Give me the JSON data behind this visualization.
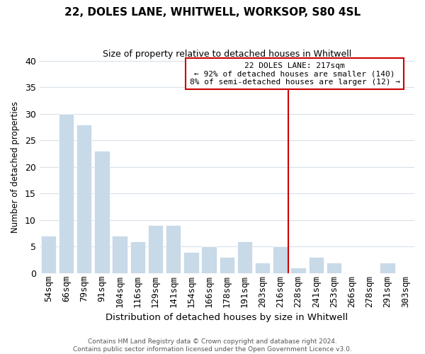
{
  "title": "22, DOLES LANE, WHITWELL, WORKSOP, S80 4SL",
  "subtitle": "Size of property relative to detached houses in Whitwell",
  "xlabel": "Distribution of detached houses by size in Whitwell",
  "ylabel": "Number of detached properties",
  "footer_line1": "Contains HM Land Registry data © Crown copyright and database right 2024.",
  "footer_line2": "Contains public sector information licensed under the Open Government Licence v3.0.",
  "bins": [
    "54sqm",
    "66sqm",
    "79sqm",
    "91sqm",
    "104sqm",
    "116sqm",
    "129sqm",
    "141sqm",
    "154sqm",
    "166sqm",
    "178sqm",
    "191sqm",
    "203sqm",
    "216sqm",
    "228sqm",
    "241sqm",
    "253sqm",
    "266sqm",
    "278sqm",
    "291sqm",
    "303sqm"
  ],
  "values": [
    7,
    30,
    28,
    23,
    7,
    6,
    9,
    9,
    4,
    5,
    3,
    6,
    2,
    5,
    1,
    3,
    2,
    0,
    0,
    2,
    0
  ],
  "highlight_index": 13,
  "bar_color_normal": "#c8d9e8",
  "vline_color": "#cc0000",
  "annotation_title": "22 DOLES LANE: 217sqm",
  "annotation_line1": "← 92% of detached houses are smaller (140)",
  "annotation_line2": "8% of semi-detached houses are larger (12) →",
  "annotation_box_facecolor": "#ffffff",
  "annotation_box_edgecolor": "#cc0000",
  "ylim": [
    0,
    40
  ],
  "yticks": [
    0,
    5,
    10,
    15,
    20,
    25,
    30,
    35,
    40
  ],
  "grid_color": "#d8e0e8",
  "title_fontsize": 11,
  "subtitle_fontsize": 9,
  "bar_edgecolor": "#ffffff",
  "footer_fontsize": 6.5,
  "footer_color": "#555555"
}
